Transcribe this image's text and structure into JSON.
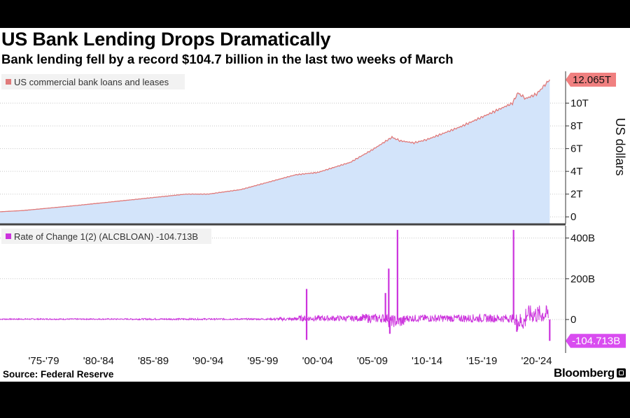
{
  "header": {
    "title": "US Bank Lending Drops Dramatically",
    "subtitle": "Bank lending fell by a record $104.7 billion in the last two weeks of March"
  },
  "footer": {
    "source": "Source: Federal Reserve",
    "brand": "Bloomberg"
  },
  "colors": {
    "upper_line": "#e07a7a",
    "upper_fill": "#d3e4fa",
    "lower_line": "#cc33dd",
    "callout_upper": "#f08080",
    "callout_lower": "#d94cf0"
  },
  "chart_data": [
    {
      "type": "area",
      "legend": "US commercial bank loans and leases",
      "ylabel": "US dollars",
      "ylim": [
        -0.6,
        12.8
      ],
      "yticks": [
        {
          "value": 0,
          "label": "0"
        },
        {
          "value": 2,
          "label": "2T"
        },
        {
          "value": 4,
          "label": "4T"
        },
        {
          "value": 6,
          "label": "6T"
        },
        {
          "value": 8,
          "label": "8T"
        },
        {
          "value": 10,
          "label": "10T"
        }
      ],
      "last_value_label": "12.065T",
      "last_value": 12.065,
      "series": [
        {
          "name": "US commercial bank loans and leases",
          "x": [
            1973.0,
            1975.0,
            1980.0,
            1985.0,
            1990.0,
            1992.0,
            1995.0,
            2000.0,
            2002.0,
            2005.0,
            2007.0,
            2008.8,
            2009.5,
            2010.8,
            2012.0,
            2015.0,
            2018.0,
            2019.8,
            2020.3,
            2021.0,
            2022.0,
            2023.2
          ],
          "values": [
            0.45,
            0.55,
            1.0,
            1.5,
            2.0,
            2.0,
            2.4,
            3.7,
            3.9,
            4.8,
            5.9,
            7.0,
            6.7,
            6.5,
            6.8,
            7.9,
            9.2,
            10.0,
            10.9,
            10.4,
            10.8,
            12.065
          ]
        }
      ]
    },
    {
      "type": "line",
      "legend": "Rate of Change 1(2) (ALCBLOAN) -104.713B",
      "ylim": [
        -130,
        460
      ],
      "yticks": [
        {
          "value": 0,
          "label": "0"
        },
        {
          "value": 200,
          "label": "200B"
        },
        {
          "value": 400,
          "label": "400B"
        }
      ],
      "last_value_label": "-104.713B",
      "last_value": -104.713,
      "spikes": [
        {
          "x": 2001.0,
          "value": 150
        },
        {
          "x": 2001.0,
          "value": -100
        },
        {
          "x": 2008.5,
          "value": 250
        },
        {
          "x": 2008.6,
          "value": -70
        },
        {
          "x": 2009.3,
          "value": 440
        },
        {
          "x": 2008.2,
          "value": 130
        },
        {
          "x": 2019.9,
          "value": 440
        },
        {
          "x": 2020.2,
          "value": -60
        },
        {
          "x": 2023.2,
          "value": -104.713
        }
      ]
    }
  ],
  "x_axis": {
    "range": [
      1973.0,
      2023.5
    ],
    "tick_labels": [
      {
        "value": 1977.0,
        "label": "'75-'79"
      },
      {
        "value": 1982.0,
        "label": "'80-'84"
      },
      {
        "value": 1987.0,
        "label": "'85-'89"
      },
      {
        "value": 1992.0,
        "label": "'90-'94"
      },
      {
        "value": 1997.0,
        "label": "'95-'99"
      },
      {
        "value": 2002.0,
        "label": "'00-'04"
      },
      {
        "value": 2007.0,
        "label": "'05-'09"
      },
      {
        "value": 2012.0,
        "label": "'10-'14"
      },
      {
        "value": 2017.0,
        "label": "'15-'19"
      },
      {
        "value": 2022.0,
        "label": "'20-'24"
      }
    ]
  }
}
